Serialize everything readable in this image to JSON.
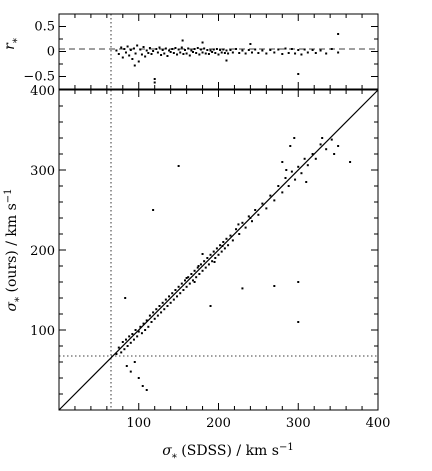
{
  "chart_data": [
    {
      "type": "scatter",
      "panel": "residual",
      "xlim": [
        0,
        400
      ],
      "ylim": [
        -0.75,
        0.75
      ],
      "ylabel": "r_*",
      "yticks": [
        -0.5,
        0,
        0.5
      ],
      "ytick_labels": [
        "−0.5",
        "0",
        "0.5"
      ],
      "reference_lines": [
        {
          "orientation": "horizontal",
          "y": 0,
          "style": "dashed"
        },
        {
          "orientation": "vertical",
          "x": 70,
          "style": "dotted"
        }
      ],
      "points": [
        [
          72,
          0.02
        ],
        [
          75,
          -0.05
        ],
        [
          78,
          0.08
        ],
        [
          80,
          -0.12
        ],
        [
          82,
          0.05
        ],
        [
          84,
          -0.02
        ],
        [
          86,
          0.1
        ],
        [
          88,
          -0.08
        ],
        [
          90,
          0.03
        ],
        [
          92,
          -0.15
        ],
        [
          94,
          0.06
        ],
        [
          96,
          -0.04
        ],
        [
          98,
          0.12
        ],
        [
          100,
          -0.2
        ],
        [
          102,
          0.04
        ],
        [
          104,
          -0.06
        ],
        [
          106,
          0.09
        ],
        [
          108,
          -0.1
        ],
        [
          110,
          0.02
        ],
        [
          112,
          -0.03
        ],
        [
          114,
          0.07
        ],
        [
          116,
          -0.05
        ],
        [
          118,
          0.01
        ],
        [
          120,
          -0.55
        ],
        [
          122,
          0.05
        ],
        [
          124,
          -0.02
        ],
        [
          126,
          0.08
        ],
        [
          128,
          -0.07
        ],
        [
          130,
          0.03
        ],
        [
          132,
          -0.04
        ],
        [
          134,
          0.06
        ],
        [
          136,
          -0.09
        ],
        [
          138,
          0.02
        ],
        [
          140,
          -0.01
        ],
        [
          142,
          0.05
        ],
        [
          144,
          -0.03
        ],
        [
          146,
          0.07
        ],
        [
          148,
          -0.06
        ],
        [
          150,
          0.04
        ],
        [
          152,
          -0.02
        ],
        [
          154,
          0.08
        ],
        [
          156,
          -0.05
        ],
        [
          158,
          0.03
        ],
        [
          160,
          -0.04
        ],
        [
          162,
          0.06
        ],
        [
          164,
          -0.08
        ],
        [
          166,
          0.02
        ],
        [
          168,
          -0.01
        ],
        [
          170,
          0.05
        ],
        [
          172,
          -0.03
        ],
        [
          174,
          0.07
        ],
        [
          176,
          -0.06
        ],
        [
          178,
          0.04
        ],
        [
          180,
          -0.02
        ],
        [
          182,
          0.06
        ],
        [
          184,
          -0.04
        ],
        [
          186,
          0.03
        ],
        [
          188,
          -0.05
        ],
        [
          190,
          0.02
        ],
        [
          192,
          -0.01
        ],
        [
          194,
          0.04
        ],
        [
          196,
          -0.03
        ],
        [
          198,
          0.05
        ],
        [
          200,
          -0.06
        ],
        [
          202,
          0.03
        ],
        [
          204,
          -0.02
        ],
        [
          206,
          0.04
        ],
        [
          208,
          -0.03
        ],
        [
          210,
          0.02
        ],
        [
          212,
          -0.04
        ],
        [
          215,
          0.03
        ],
        [
          218,
          -0.02
        ],
        [
          222,
          0.05
        ],
        [
          226,
          -0.03
        ],
        [
          230,
          0.02
        ],
        [
          234,
          -0.04
        ],
        [
          238,
          0.03
        ],
        [
          242,
          -0.02
        ],
        [
          246,
          0.04
        ],
        [
          250,
          -0.03
        ],
        [
          255,
          0.02
        ],
        [
          260,
          -0.04
        ],
        [
          265,
          0.03
        ],
        [
          270,
          -0.02
        ],
        [
          275,
          0.04
        ],
        [
          280,
          -0.05
        ],
        [
          284,
          0.06
        ],
        [
          288,
          -0.03
        ],
        [
          292,
          0.05
        ],
        [
          296,
          -0.04
        ],
        [
          300,
          0.03
        ],
        [
          304,
          -0.06
        ],
        [
          308,
          0.04
        ],
        [
          312,
          -0.02
        ],
        [
          318,
          0.03
        ],
        [
          322,
          -0.03
        ],
        [
          328,
          0.02
        ],
        [
          335,
          -0.04
        ],
        [
          342,
          0.05
        ],
        [
          350,
          -0.02
        ],
        [
          155,
          0.22
        ],
        [
          240,
          0.15
        ],
        [
          300,
          -0.45
        ],
        [
          350,
          0.35
        ],
        [
          120,
          -0.62
        ],
        [
          210,
          -0.18
        ],
        [
          95,
          -0.28
        ],
        [
          180,
          0.18
        ]
      ]
    },
    {
      "type": "scatter",
      "panel": "main",
      "xlabel": "σ_* (SDSS) / km s^-1",
      "ylabel": "σ_* (ours) / km s^-1",
      "xlim": [
        0,
        400
      ],
      "ylim": [
        0,
        400
      ],
      "xticks": [
        100,
        200,
        300,
        400
      ],
      "yticks": [
        100,
        200,
        300,
        400
      ],
      "xtick_labels": [
        "100",
        "200",
        "300",
        "400"
      ],
      "ytick_labels": [
        "100",
        "200",
        "300",
        "400"
      ],
      "reference_lines": [
        {
          "orientation": "diagonal",
          "from": [
            0,
            0
          ],
          "to": [
            400,
            400
          ],
          "style": "solid"
        },
        {
          "orientation": "vertical",
          "x": 70,
          "style": "dotted"
        },
        {
          "orientation": "horizontal",
          "y": 70,
          "style": "dotted"
        }
      ],
      "points": [
        [
          72,
          70
        ],
        [
          75,
          78
        ],
        [
          78,
          72
        ],
        [
          80,
          85
        ],
        [
          82,
          76
        ],
        [
          84,
          88
        ],
        [
          86,
          80
        ],
        [
          88,
          92
        ],
        [
          90,
          84
        ],
        [
          92,
          95
        ],
        [
          94,
          88
        ],
        [
          96,
          100
        ],
        [
          98,
          92
        ],
        [
          100,
          98
        ],
        [
          102,
          104
        ],
        [
          104,
          96
        ],
        [
          106,
          108
        ],
        [
          108,
          100
        ],
        [
          110,
          112
        ],
        [
          112,
          104
        ],
        [
          114,
          118
        ],
        [
          116,
          110
        ],
        [
          118,
          122
        ],
        [
          120,
          114
        ],
        [
          122,
          126
        ],
        [
          124,
          118
        ],
        [
          126,
          130
        ],
        [
          128,
          122
        ],
        [
          130,
          134
        ],
        [
          132,
          126
        ],
        [
          134,
          138
        ],
        [
          136,
          130
        ],
        [
          138,
          142
        ],
        [
          140,
          134
        ],
        [
          142,
          146
        ],
        [
          144,
          138
        ],
        [
          146,
          150
        ],
        [
          148,
          142
        ],
        [
          150,
          154
        ],
        [
          152,
          146
        ],
        [
          154,
          158
        ],
        [
          156,
          150
        ],
        [
          158,
          162
        ],
        [
          160,
          154
        ],
        [
          162,
          166
        ],
        [
          164,
          158
        ],
        [
          166,
          170
        ],
        [
          168,
          162
        ],
        [
          170,
          174
        ],
        [
          172,
          166
        ],
        [
          174,
          178
        ],
        [
          176,
          170
        ],
        [
          178,
          182
        ],
        [
          180,
          174
        ],
        [
          182,
          186
        ],
        [
          184,
          178
        ],
        [
          186,
          190
        ],
        [
          188,
          182
        ],
        [
          190,
          194
        ],
        [
          192,
          186
        ],
        [
          194,
          198
        ],
        [
          196,
          190
        ],
        [
          198,
          202
        ],
        [
          200,
          194
        ],
        [
          202,
          206
        ],
        [
          204,
          198
        ],
        [
          206,
          210
        ],
        [
          208,
          202
        ],
        [
          210,
          214
        ],
        [
          212,
          206
        ],
        [
          215,
          218
        ],
        [
          218,
          212
        ],
        [
          222,
          226
        ],
        [
          226,
          220
        ],
        [
          230,
          234
        ],
        [
          234,
          228
        ],
        [
          238,
          242
        ],
        [
          242,
          236
        ],
        [
          246,
          250
        ],
        [
          250,
          244
        ],
        [
          255,
          258
        ],
        [
          260,
          252
        ],
        [
          265,
          268
        ],
        [
          270,
          262
        ],
        [
          275,
          280
        ],
        [
          280,
          272
        ],
        [
          284,
          290
        ],
        [
          288,
          280
        ],
        [
          292,
          298
        ],
        [
          296,
          288
        ],
        [
          300,
          304
        ],
        [
          304,
          296
        ],
        [
          308,
          314
        ],
        [
          312,
          306
        ],
        [
          318,
          320
        ],
        [
          322,
          314
        ],
        [
          328,
          332
        ],
        [
          335,
          326
        ],
        [
          342,
          338
        ],
        [
          350,
          330
        ],
        [
          150,
          305
        ],
        [
          118,
          250
        ],
        [
          300,
          110
        ],
        [
          300,
          160
        ],
        [
          230,
          152
        ],
        [
          190,
          130
        ],
        [
          270,
          155
        ],
        [
          83,
          140
        ],
        [
          95,
          60
        ],
        [
          100,
          40
        ],
        [
          105,
          30
        ],
        [
          110,
          25
        ],
        [
          85,
          55
        ],
        [
          90,
          48
        ],
        [
          160,
          165
        ],
        [
          175,
          180
        ],
        [
          205,
          205
        ],
        [
          240,
          240
        ],
        [
          285,
          300
        ],
        [
          310,
          285
        ],
        [
          330,
          340
        ],
        [
          345,
          320
        ],
        [
          365,
          310
        ],
        [
          290,
          330
        ],
        [
          280,
          310
        ],
        [
          295,
          340
        ],
        [
          180,
          195
        ],
        [
          170,
          160
        ],
        [
          195,
          185
        ],
        [
          225,
          232
        ]
      ]
    }
  ]
}
